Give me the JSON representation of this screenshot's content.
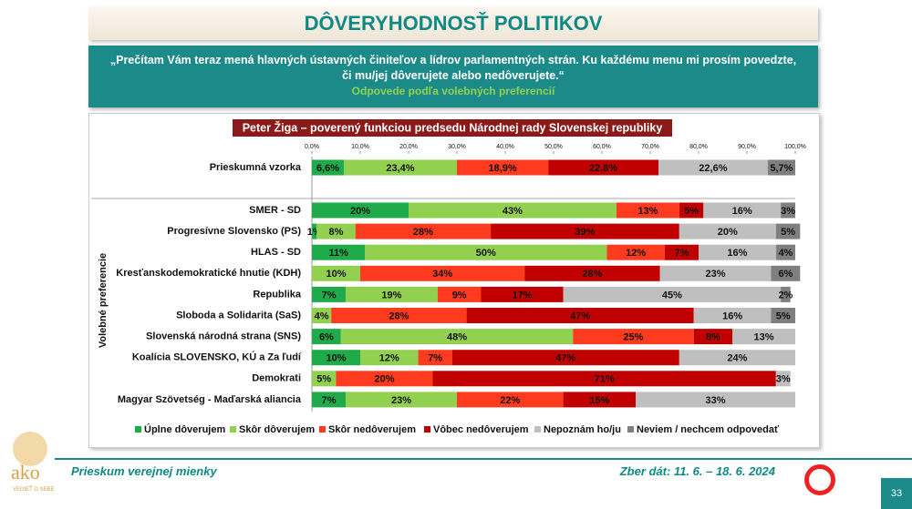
{
  "header": {
    "title": "DÔVERYHODNOSŤ POLITIKOV",
    "question": "„Prečítam Vám teraz mená hlavných ústavných činiteľov a lídrov parlamentných strán. Ku každému menu mi prosím povedzte, či mu/jej dôverujete alebo nedôverujete.“",
    "subtitle": "Odpovede podľa volebných preferencií"
  },
  "chart_data": {
    "type": "bar",
    "orientation": "horizontal",
    "stacked": true,
    "title": "Peter Žiga – poverený funkciou predsedu Národnej rady Slovenskej republiky",
    "y_label": "Volebné preferencie",
    "categories": [
      "Prieskumná vzorka",
      "SMER - SD",
      "Progresívne Slovensko (PS)",
      "HLAS - SD",
      "Kresťanskodemokratické hnutie (KDH)",
      "Republika",
      "Sloboda a Solidarita (SaS)",
      "Slovenská národná strana (SNS)",
      "Koalícia SLOVENSKO, KÚ a Za ľudí",
      "Demokrati",
      "Magyar Szövetség - Maďarská aliancia"
    ],
    "xlim": [
      0,
      100
    ],
    "xticks": [
      {
        "value": 0,
        "label": "0,0%"
      },
      {
        "value": 10,
        "label": "10,0%"
      },
      {
        "value": 20,
        "label": "20,0%"
      },
      {
        "value": 30,
        "label": "30,0%"
      },
      {
        "value": 40,
        "label": "40,0%"
      },
      {
        "value": 50,
        "label": "50,0%"
      },
      {
        "value": 60,
        "label": "60,0%"
      },
      {
        "value": 70,
        "label": "70,0%"
      },
      {
        "value": 80,
        "label": "80,0%"
      },
      {
        "value": 90,
        "label": "90,0%"
      },
      {
        "value": 100,
        "label": "100,0%"
      }
    ],
    "legend": "bottom",
    "series": [
      {
        "name": "Úplne dôverujem",
        "color": "#1fab4a",
        "values": [
          6.6,
          20,
          1,
          11,
          null,
          7,
          null,
          6,
          10,
          null,
          7
        ],
        "value_labels": [
          "6,6%",
          "20%",
          "1%",
          "11%",
          null,
          "7%",
          null,
          "6%",
          "10%",
          null,
          "7%"
        ]
      },
      {
        "name": "Skôr dôverujem",
        "color": "#92d050",
        "values": [
          23.4,
          43,
          8,
          50,
          10,
          19,
          4,
          48,
          12,
          5,
          23
        ],
        "value_labels": [
          "23,4%",
          "43%",
          "8%",
          "50%",
          "10%",
          "19%",
          "4%",
          "48%",
          "12%",
          "5%",
          "23%"
        ]
      },
      {
        "name": "Skôr nedôverujem",
        "color": "#ff3b1f",
        "values": [
          18.9,
          13,
          28,
          12,
          34,
          9,
          28,
          25,
          7,
          20,
          22
        ],
        "value_labels": [
          "18,9%",
          "13%",
          "28%",
          "12%",
          "34%",
          "9%",
          "28%",
          "25%",
          "7%",
          "20%",
          "22%"
        ]
      },
      {
        "name": "Vôbec nedôverujem",
        "color": "#c00000",
        "values": [
          22.8,
          5,
          39,
          7,
          28,
          17,
          47,
          8,
          47,
          71,
          15
        ],
        "value_labels": [
          "22,8%",
          "5%",
          "39%",
          "7%",
          "28%",
          "17%",
          "47%",
          "8%",
          "47%",
          "71%",
          "15%"
        ]
      },
      {
        "name": "Nepoznám ho/ju",
        "color": "#bfbfbf",
        "values": [
          22.6,
          16,
          20,
          16,
          23,
          45,
          16,
          13,
          24,
          3,
          33
        ],
        "value_labels": [
          "22,6%",
          "16%",
          "20%",
          "16%",
          "23%",
          "45%",
          "16%",
          "13%",
          "24%",
          "3%",
          "33%"
        ]
      },
      {
        "name": "Neviem / nechcem odpovedať",
        "color": "#7f7f7f",
        "values": [
          5.7,
          3,
          5,
          4,
          6,
          2,
          5,
          null,
          null,
          null,
          null
        ],
        "value_labels": [
          "5,7%",
          "3%",
          "5%",
          "4%",
          "6%",
          "2%",
          "5%",
          null,
          null,
          null,
          null
        ]
      }
    ]
  },
  "footer": {
    "survey": "Prieskum verejnej mienky",
    "dates": "Zber dát: 11. 6. – 18. 6. 2024",
    "page": "33",
    "logo": "ako",
    "logo_tagline": "VEDIEŤ O SEBE"
  }
}
